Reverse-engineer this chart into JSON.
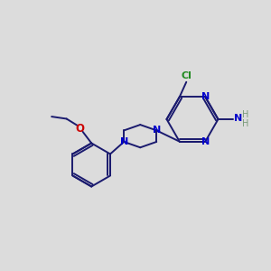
{
  "bg_color": "#dcdcdc",
  "bond_color": "#1a1a6e",
  "n_color": "#0000cc",
  "o_color": "#cc0000",
  "cl_color": "#228b22",
  "nh_color": "#7a9a7a",
  "lw": 1.4,
  "fs": 8.0,
  "fsh": 7.0,
  "figw": 3.0,
  "figh": 3.0,
  "dpi": 100,
  "xlim": [
    0,
    10
  ],
  "ylim": [
    0,
    10
  ]
}
